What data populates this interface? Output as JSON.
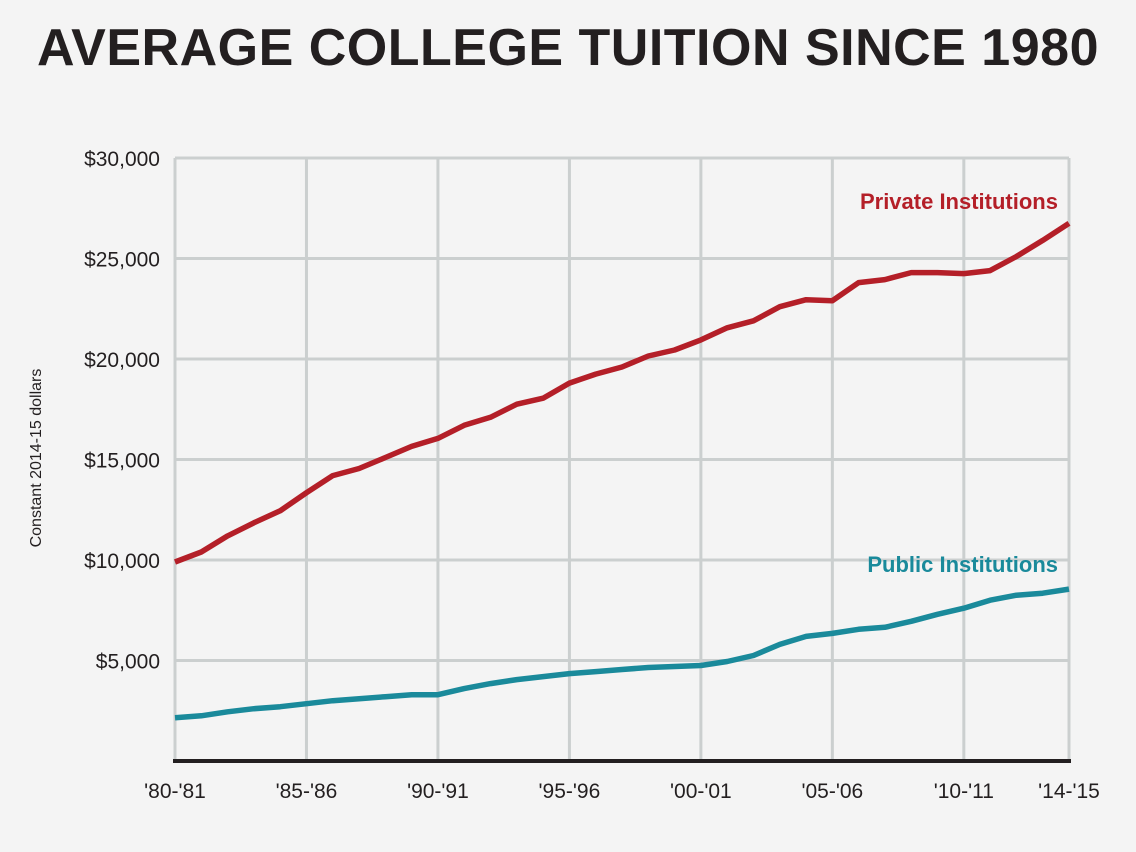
{
  "chart_data": {
    "type": "line",
    "title": "AVERAGE COLLEGE TUITION SINCE 1980",
    "ylabel": "Constant 2014-15 dollars",
    "xlabel": "",
    "x": [
      "'80-'81",
      "'81-'82",
      "'82-'83",
      "'83-'84",
      "'84-'85",
      "'85-'86",
      "'86-'87",
      "'87-'88",
      "'88-'89",
      "'89-'90",
      "'90-'91",
      "'91-'92",
      "'92-'93",
      "'93-'94",
      "'94-'95",
      "'95-'96",
      "'96-'97",
      "'97-'98",
      "'98-'99",
      "'99-'00",
      "'00-'01",
      "'01-'02",
      "'02-'03",
      "'03-'04",
      "'04-'05",
      "'05-'06",
      "'06-'07",
      "'07-'08",
      "'08-'09",
      "'09-'10",
      "'10-'11",
      "'11-'12",
      "'12-'13",
      "'13-'14",
      "'14-'15"
    ],
    "x_tick_labels": [
      "'80-'81",
      "'85-'86",
      "'90-'91",
      "'95-'96",
      "'00-'01",
      "'05-'06",
      "'10-'11",
      "'14-'15"
    ],
    "x_tick_indices": [
      0,
      5,
      10,
      15,
      20,
      25,
      30,
      34
    ],
    "y_ticks": [
      5000,
      10000,
      15000,
      20000,
      25000,
      30000
    ],
    "y_tick_labels": [
      "$5,000",
      "$10,000",
      "$15,000",
      "$20,000",
      "$25,000",
      "$30,000"
    ],
    "ylim": [
      0,
      30000
    ],
    "grid": true,
    "series": [
      {
        "name": "Private Institutions",
        "color": "#b41f28",
        "values": [
          9900,
          10400,
          11200,
          11850,
          12450,
          13350,
          14200,
          14550,
          15100,
          15650,
          16050,
          16700,
          17100,
          17750,
          18050,
          18800,
          19250,
          19600,
          20150,
          20450,
          20950,
          21550,
          21900,
          22600,
          22950,
          22900,
          23800,
          23950,
          24300,
          24300,
          24250,
          24400,
          25100,
          25900,
          26750
        ]
      },
      {
        "name": "Public Institutions",
        "color": "#1a8a9b",
        "values": [
          2150,
          2250,
          2450,
          2600,
          2700,
          2850,
          3000,
          3100,
          3200,
          3300,
          3300,
          3600,
          3850,
          4050,
          4200,
          4350,
          4450,
          4550,
          4650,
          4700,
          4750,
          4950,
          5250,
          5800,
          6200,
          6350,
          6550,
          6650,
          6950,
          7300,
          7600,
          8000,
          8250,
          8350,
          8550
        ]
      }
    ]
  }
}
